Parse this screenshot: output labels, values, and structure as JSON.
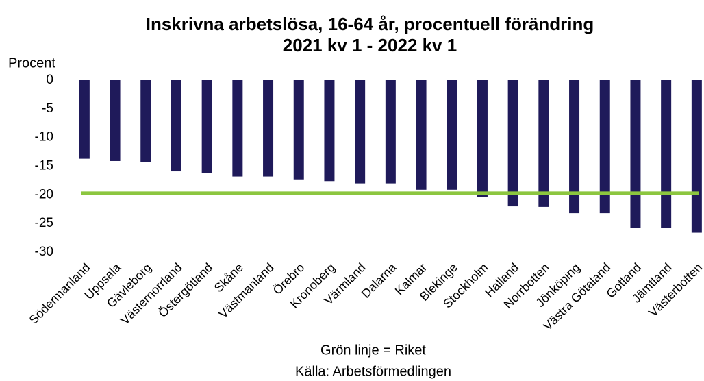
{
  "chart_data": {
    "type": "bar",
    "title": "Inskrivna arbetslösa, 16-64 år, procentuell förändring",
    "subtitle": "2021 kv 1 - 2022 kv 1",
    "ylabel": "Procent",
    "categories": [
      "Södermanland",
      "Uppsala",
      "Gävleborg",
      "Västernorrland",
      "Östergötland",
      "Skåne",
      "Västmanland",
      "Örebro",
      "Kronoberg",
      "Värmland",
      "Dalarna",
      "Kalmar",
      "Blekinge",
      "Stockholm",
      "Halland",
      "Norrbotten",
      "Jönköping",
      "Västra Götaland",
      "Gotland",
      "Jämtland",
      "Västerbotten"
    ],
    "values": [
      -13.7,
      -14.1,
      -14.3,
      -15.9,
      -16.2,
      -16.8,
      -16.8,
      -17.3,
      -17.6,
      -18.0,
      -18.0,
      -19.1,
      -19.1,
      -20.4,
      -22.0,
      -22.1,
      -23.2,
      -23.2,
      -25.7,
      -25.8,
      -26.6
    ],
    "color": "#1f1a5a",
    "reference_line": {
      "value": -19.7,
      "color": "#8cc63f"
    },
    "annotation": "Grön linje = Riket",
    "source": "Källa: Arbetsförmedlingen",
    "ylim": [
      0,
      -30
    ],
    "yticks": [
      0,
      -5,
      -10,
      -15,
      -20,
      -25,
      -30
    ],
    "grid": false
  }
}
